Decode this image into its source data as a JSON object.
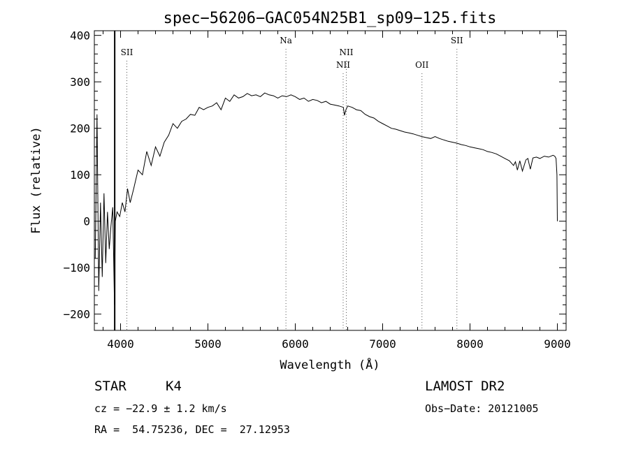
{
  "chart_data": {
    "type": "line",
    "title": "spec−56206−GAC054N25B1_sp09−125.fits",
    "xlabel": "Wavelength (Å)",
    "ylabel": "Flux (relative)",
    "xlim": [
      3700,
      9100
    ],
    "ylim": [
      -235,
      410
    ],
    "xticks": [
      4000,
      5000,
      6000,
      7000,
      8000,
      9000
    ],
    "xtick_labels": [
      "4000",
      "5000",
      "6000",
      "7000",
      "8000",
      "9000"
    ],
    "yticks": [
      -200,
      -100,
      0,
      100,
      200,
      300,
      400
    ],
    "ytick_labels": [
      "−200",
      "−100",
      "0",
      "100",
      "200",
      "300",
      "400"
    ],
    "grid": false,
    "series": [
      {
        "x": [
          3710,
          3730,
          3750,
          3770,
          3790,
          3810,
          3830,
          3850,
          3870,
          3890,
          3910,
          3930,
          3940,
          3960,
          3990,
          4020,
          4050,
          4080,
          4110,
          4150,
          4200,
          4250,
          4300,
          4350,
          4400,
          4450,
          4500,
          4550,
          4600,
          4650,
          4700,
          4750,
          4800,
          4850,
          4900,
          4950,
          5000,
          5050,
          5100,
          5150,
          5200,
          5250,
          5300,
          5350,
          5400,
          5450,
          5500,
          5550,
          5600,
          5650,
          5700,
          5750,
          5800,
          5850,
          5900,
          5950,
          6000,
          6050,
          6100,
          6150,
          6200,
          6250,
          6300,
          6350,
          6400,
          6450,
          6500,
          6550,
          6563,
          6580,
          6600,
          6650,
          6700,
          6750,
          6800,
          6850,
          6900,
          6950,
          7000,
          7050,
          7100,
          7150,
          7200,
          7250,
          7300,
          7350,
          7400,
          7450,
          7500,
          7550,
          7600,
          7650,
          7700,
          7750,
          7800,
          7850,
          7900,
          7950,
          8000,
          8050,
          8100,
          8150,
          8200,
          8250,
          8300,
          8350,
          8400,
          8450,
          8498,
          8520,
          8542,
          8570,
          8600,
          8640,
          8662,
          8690,
          8720,
          8760,
          8800,
          8850,
          8900,
          8950,
          8970,
          8985,
          8995,
          9000
        ],
        "values": [
          -80,
          230,
          -150,
          40,
          -120,
          60,
          -90,
          20,
          -60,
          -10,
          30,
          -180,
          0,
          20,
          10,
          40,
          20,
          70,
          40,
          70,
          110,
          100,
          150,
          120,
          160,
          140,
          170,
          185,
          210,
          200,
          215,
          220,
          230,
          228,
          245,
          240,
          245,
          248,
          255,
          240,
          265,
          258,
          272,
          265,
          268,
          275,
          270,
          272,
          268,
          276,
          272,
          270,
          265,
          270,
          268,
          272,
          268,
          262,
          265,
          258,
          262,
          260,
          255,
          258,
          252,
          250,
          248,
          245,
          228,
          240,
          248,
          245,
          240,
          238,
          230,
          225,
          222,
          215,
          210,
          205,
          200,
          198,
          195,
          192,
          190,
          188,
          185,
          182,
          180,
          178,
          182,
          178,
          175,
          172,
          170,
          168,
          165,
          163,
          160,
          158,
          156,
          154,
          150,
          148,
          145,
          140,
          135,
          130,
          120,
          128,
          110,
          130,
          108,
          132,
          135,
          112,
          136,
          138,
          135,
          140,
          138,
          142,
          140,
          135,
          100,
          0
        ]
      }
    ],
    "annotations": [
      {
        "label": "SII",
        "x": 4072,
        "row": 1
      },
      {
        "label": "Na",
        "x": 5893,
        "row": 0
      },
      {
        "label": "NII",
        "x": 6548,
        "row": 2
      },
      {
        "label": "NII",
        "x": 6584,
        "row": 1
      },
      {
        "label": "OII",
        "x": 7450,
        "row": 2
      },
      {
        "label": "SII",
        "x": 7850,
        "row": 0
      }
    ],
    "marker_lines": [
      {
        "x": 3933,
        "style": "solid"
      }
    ]
  },
  "info": {
    "object_class": "STAR",
    "subclass": "K4",
    "velocity": "cz = −22.9 ± 1.2 km/s",
    "coords": "RA =  54.75236, DEC =  27.12953",
    "survey": "LAMOST DR2",
    "obs_date": "Obs−Date: 20121005"
  }
}
